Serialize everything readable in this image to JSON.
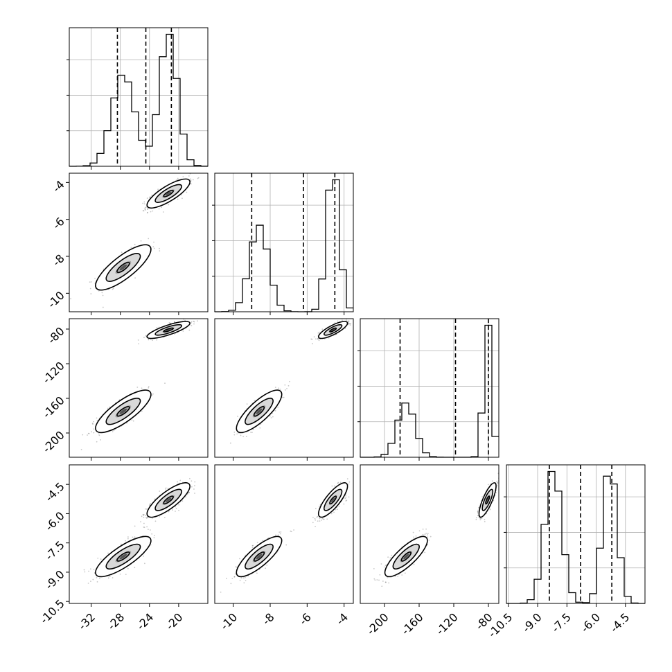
{
  "chart_data": {
    "type": "corner",
    "params": [
      {
        "range": [
          -35,
          -16
        ],
        "ticks": [
          "-32",
          "-28",
          "-24",
          "-20"
        ],
        "tick_values": [
          -32,
          -28,
          -24,
          -20
        ],
        "quantiles": [
          -28.4,
          -24.5,
          -21.0
        ],
        "modes": [
          {
            "mean": -27.6,
            "sd": 1.55,
            "weight": 0.47
          },
          {
            "mean": -21.4,
            "sd": 1.2,
            "weight": 0.53
          }
        ]
      },
      {
        "range": [
          -11,
          -3.5
        ],
        "ticks": [
          "-10",
          "-8",
          "-6",
          "-4"
        ],
        "tick_values": [
          -10,
          -8,
          -6,
          -4
        ],
        "quantiles": [
          -9.0,
          -6.2,
          -4.5
        ],
        "modes": [
          {
            "mean": -8.6,
            "sd": 0.5,
            "weight": 0.47
          },
          {
            "mean": -4.6,
            "sd": 0.32,
            "weight": 0.53
          }
        ]
      },
      {
        "range": [
          -228,
          -68
        ],
        "ticks": [
          "-200",
          "-160",
          "-120",
          "-80"
        ],
        "tick_values": [
          -200,
          -160,
          -120,
          -80
        ],
        "quantiles": [
          -182,
          -118,
          -80
        ],
        "modes": [
          {
            "mean": -175,
            "sd": 10,
            "weight": 0.47
          },
          {
            "mean": -81,
            "sd": 4,
            "weight": 0.53
          }
        ]
      },
      {
        "range": [
          -10.6,
          -3.5
        ],
        "ticks": [
          "-10.5",
          "-9.0",
          "-7.5",
          "-6.0",
          "-4.5"
        ],
        "tick_values": [
          -10.5,
          -9.0,
          -7.5,
          -6.0,
          -4.5
        ],
        "quantiles": [
          -8.4,
          -6.8,
          -5.2
        ],
        "modes": [
          {
            "mean": -8.2,
            "sd": 0.42,
            "weight": 0.53
          },
          {
            "mean": -5.3,
            "sd": 0.36,
            "weight": 0.47
          }
        ]
      }
    ],
    "pair_correlation": [
      [
        1,
        0.8,
        0.8,
        0.8
      ],
      [
        0.8,
        1,
        0.8,
        0.8
      ],
      [
        0.8,
        0.8,
        1,
        0.8
      ],
      [
        0.8,
        0.8,
        0.8,
        1
      ]
    ],
    "histogram_bins": 20,
    "levels": [
      0.68,
      0.95
    ],
    "grid": true
  }
}
